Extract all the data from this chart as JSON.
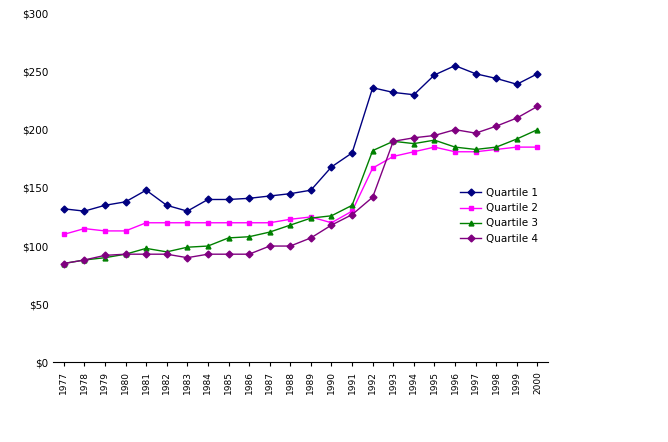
{
  "years": [
    1977,
    1978,
    1979,
    1980,
    1981,
    1982,
    1983,
    1984,
    1985,
    1986,
    1987,
    1988,
    1989,
    1990,
    1991,
    1992,
    1993,
    1994,
    1995,
    1996,
    1997,
    1998,
    1999,
    2000
  ],
  "quartile1": [
    132,
    130,
    135,
    138,
    148,
    135,
    130,
    140,
    140,
    141,
    143,
    145,
    148,
    168,
    180,
    236,
    232,
    230,
    247,
    255,
    248,
    244,
    239,
    248
  ],
  "quartile2": [
    110,
    115,
    113,
    113,
    120,
    120,
    120,
    120,
    120,
    120,
    120,
    123,
    125,
    120,
    130,
    167,
    177,
    181,
    185,
    181,
    181,
    183,
    185,
    185
  ],
  "quartile3": [
    85,
    88,
    90,
    93,
    98,
    95,
    99,
    100,
    107,
    108,
    112,
    118,
    124,
    126,
    135,
    182,
    190,
    188,
    191,
    185,
    183,
    185,
    192,
    200
  ],
  "quartile4": [
    85,
    88,
    92,
    93,
    93,
    93,
    90,
    93,
    93,
    93,
    100,
    100,
    107,
    118,
    127,
    142,
    190,
    193,
    195,
    200,
    197,
    203,
    210,
    220
  ],
  "colors": {
    "quartile1": "#000080",
    "quartile2": "#ff00ff",
    "quartile3": "#008000",
    "quartile4": "#800080"
  },
  "markers": {
    "quartile1": "D",
    "quartile2": "s",
    "quartile3": "^",
    "quartile4": "D"
  },
  "ylim": [
    0,
    300
  ],
  "yticks": [
    0,
    50,
    100,
    150,
    200,
    250,
    300
  ],
  "legend_labels": [
    "Quartile 1",
    "Quartile 2",
    "Quartile 3",
    "Quartile 4"
  ],
  "background_color": "#ffffff",
  "markersize": 3.5,
  "linewidth": 1.0
}
